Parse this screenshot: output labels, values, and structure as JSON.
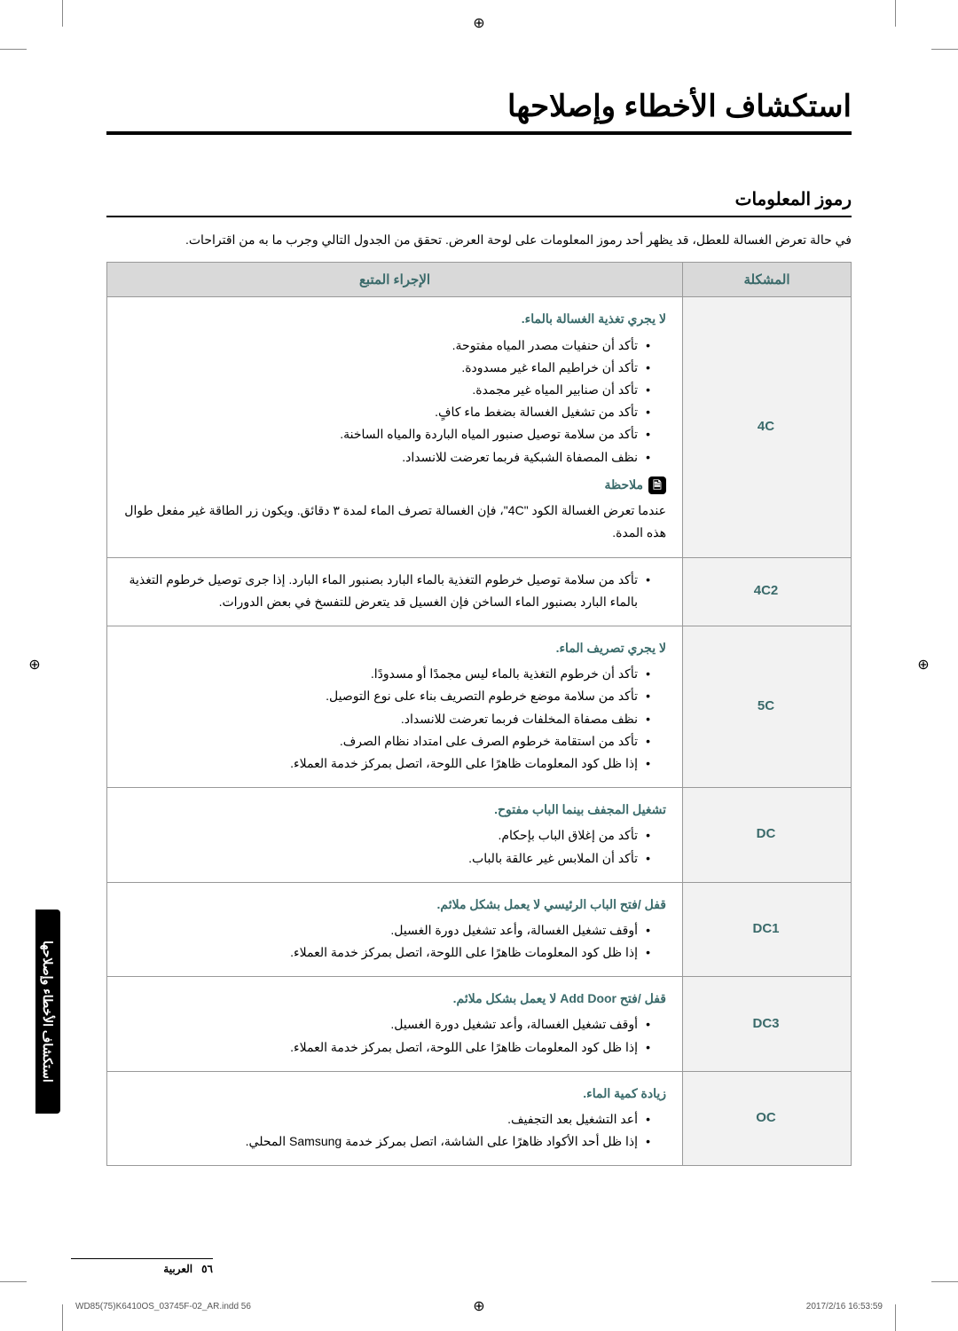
{
  "registrationGlyph": "⊕",
  "mainTitle": "استكشاف الأخطاء وإصلاحها",
  "sectionTitle": "رموز المعلومات",
  "intro": "في حالة تعرض الغسالة للعطل، قد يظهر أحد رموز المعلومات على لوحة العرض. تحقق من الجدول التالي وجرب ما به من اقتراحات.",
  "headers": {
    "code": "المشكلة",
    "action": "الإجراء المتبع"
  },
  "noteLabel": "ملاحظة",
  "sideTab": "استكشاف الأخطاء وإصلاحها",
  "pageNum": "٥٦",
  "pageLang": "العربية",
  "printLeft": "WD85(75)K6410OS_03745F-02_AR.indd   56",
  "printRight": "2017/2/16   16:53:59",
  "rows": [
    {
      "code": "4C",
      "title": "لا يجري تغذية الغسالة بالماء.",
      "items": [
        "تأكد أن حنفيات مصدر المياه مفتوحة.",
        "تأكد أن خراطيم الماء غير مسدودة.",
        "تأكد أن صنابير المياه غير مجمدة.",
        "تأكد من تشغيل الغسالة بضغط ماء كافٍ.",
        "تأكد من سلامة توصيل صنبور المياه الباردة والمياه الساخنة.",
        "نظف المصفاة الشبكية فربما تعرضت للانسداد."
      ],
      "note": "عندما تعرض الغسالة الكود \"4C\"، فإن الغسالة تصرف الماء لمدة ٣ دقائق. ويكون زر الطاقة غير مفعل طوال هذه المدة."
    },
    {
      "code": "4C2",
      "items": [
        "تأكد من سلامة توصيل خرطوم التغذية بالماء البارد بصنبور الماء البارد. إذا جرى توصيل خرطوم التغذية بالماء البارد بصنبور الماء الساخن فإن الغسيل قد يتعرض للتفسخ في بعض الدورات."
      ]
    },
    {
      "code": "5C",
      "title": "لا يجري تصريف الماء.",
      "items": [
        "تأكد أن خرطوم التغذية بالماء ليس مجمدًا أو مسدودًا.",
        "تأكد من سلامة موضع خرطوم التصريف بناء على نوع التوصيل.",
        "نظف مصفاة المخلفات فربما تعرضت للانسداد.",
        "تأكد من استقامة خرطوم الصرف على امتداد نظام الصرف.",
        "إذا ظل كود المعلومات ظاهرًا على اللوحة، اتصل بمركز خدمة العملاء."
      ]
    },
    {
      "code": "DC",
      "title": "تشغيل المجفف بينما الباب مفتوح.",
      "items": [
        "تأكد من إغلاق الباب بإحكام.",
        "تأكد أن الملابس غير عالقة بالباب."
      ]
    },
    {
      "code": "DC1",
      "title": "قفل /فتح الباب الرئيسي لا يعمل بشكل ملائم.",
      "items": [
        "أوقف تشغيل الغسالة، وأعد تشغيل دورة الغسيل.",
        "إذا ظل كود المعلومات ظاهرًا على اللوحة، اتصل بمركز خدمة العملاء."
      ]
    },
    {
      "code": "DC3",
      "title": "قفل /فتح Add Door لا يعمل بشكل ملائم.",
      "items": [
        "أوقف تشغيل الغسالة، وأعد تشغيل دورة الغسيل.",
        "إذا ظل كود المعلومات ظاهرًا على اللوحة، اتصل بمركز خدمة العملاء."
      ]
    },
    {
      "code": "OC",
      "title": "زيادة كمية الماء.",
      "items": [
        "أعد التشغيل بعد التجفيف.",
        "إذا ظل أحد الأكواد ظاهرًا على الشاشة، اتصل بمركز خدمة Samsung المحلي."
      ]
    }
  ]
}
